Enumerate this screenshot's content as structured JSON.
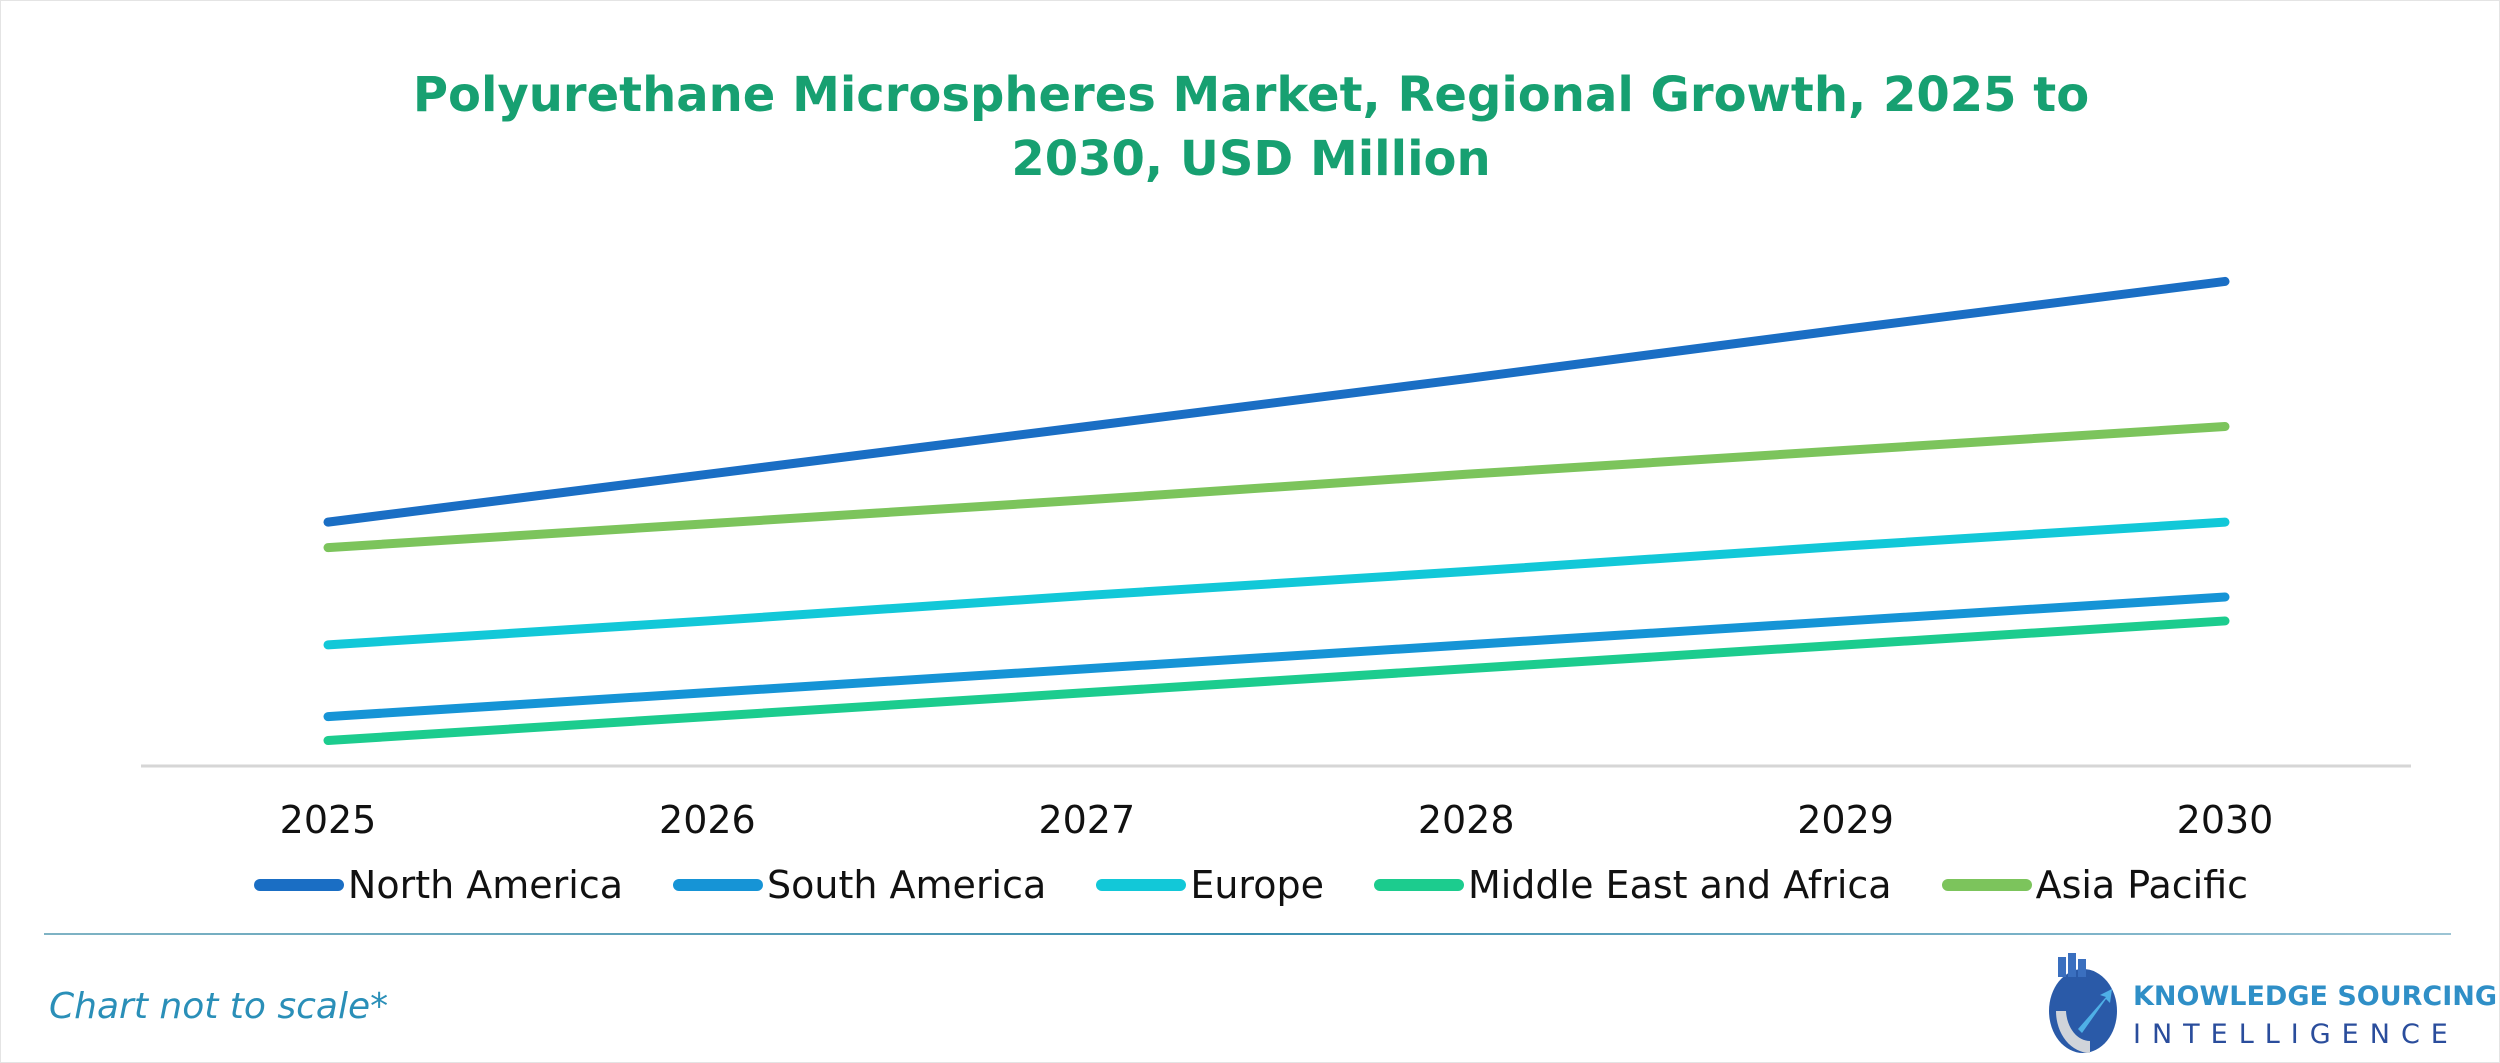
{
  "chart_data": {
    "type": "line",
    "title": "Polyurethane Microspheres Market, Regional Growth, 2025 to 2030, USD Million",
    "title_lines": [
      "Polyurethane Microspheres Market, Regional Growth, 2025 to",
      "2030, USD Million"
    ],
    "categories": [
      "2025",
      "2026",
      "2027",
      "2028",
      "2029",
      "2030"
    ],
    "y_axis_shown": false,
    "grid": false,
    "legend_position": "bottom",
    "note": "Chart not to scale*",
    "series": [
      {
        "name": "North America",
        "color": "#1a6ec4",
        "values": [
          153,
          183,
          213,
          243,
          274,
          304
        ]
      },
      {
        "name": "South America",
        "color": "#1694d6",
        "values": [
          31,
          46,
          61,
          76,
          91,
          106
        ]
      },
      {
        "name": "Europe",
        "color": "#12c8d8",
        "values": [
          76,
          91,
          107,
          122,
          138,
          153
        ]
      },
      {
        "name": "Middle East and Africa",
        "color": "#1ccc8e",
        "values": [
          16,
          31,
          46,
          61,
          76,
          91
        ]
      },
      {
        "name": "Asia Pacific",
        "color": "#7cc45c",
        "values": [
          137,
          152,
          167,
          183,
          198,
          213
        ]
      }
    ]
  },
  "branding": {
    "logo_line1": "KNOWLEDGE SOURCING",
    "logo_line2": "INTELLIGENCE"
  }
}
